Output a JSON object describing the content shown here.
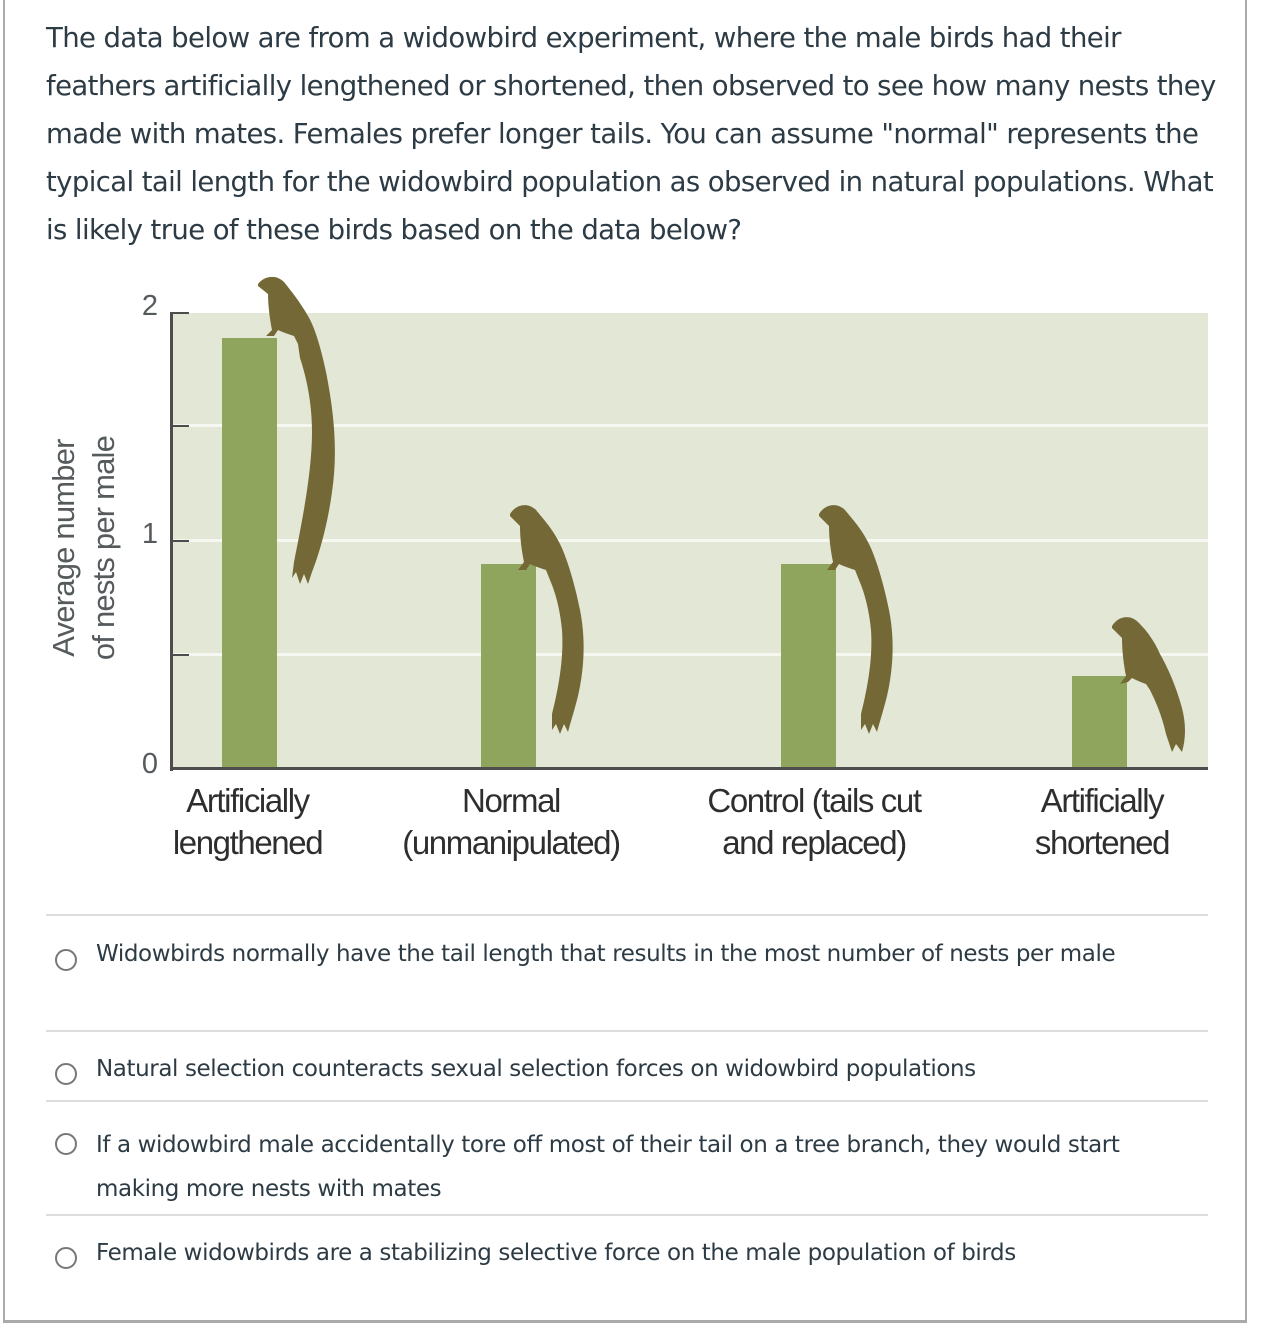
{
  "question": {
    "text": "The data below are from a widowbird experiment, where the male birds had their feathers artificially lengthened or shortened, then observed to see how many nests they made with mates. Females prefer longer tails. You can assume \"normal\" represents the typical tail length for the widowbird population as observed in natural populations. What is likely true of these birds based on the data below?"
  },
  "chart_data": {
    "type": "bar",
    "title": "",
    "xlabel": "",
    "ylabel": "Average number of nests per male",
    "ylim": [
      0,
      2
    ],
    "yticks": [
      0,
      0.5,
      1,
      1.5,
      2
    ],
    "ytick_labels": [
      "0",
      "",
      "1",
      "",
      "2"
    ],
    "grid": true,
    "legend": "none",
    "categories": [
      "Artificially lengthened",
      "Normal (unmanipulated)",
      "Control (tails cut and replaced)",
      "Artificially shortened"
    ],
    "values": [
      1.89,
      0.9,
      0.9,
      0.41
    ],
    "annotations": [
      "bird silhouette with very long tail",
      "bird silhouette with normal tail",
      "bird silhouette with normal tail",
      "bird silhouette with short tail"
    ]
  },
  "chart": {
    "ylabel_line1": "Average number",
    "ylabel_line2": "of nests per male",
    "ytick_labels": {
      "zero": "0",
      "one": "1",
      "two": "2"
    },
    "xlabels": [
      "Artificially\nlengthened",
      "Normal\n(unmanipulated)",
      "Control (tails cut\nand replaced)",
      "Artificially\nshortened"
    ],
    "colors": {
      "bar": "#8fa45c",
      "plot_bg": "#e3e7d6",
      "bird": "#746936",
      "axis": "#4d4d4d"
    }
  },
  "choices": [
    {
      "label": "Widowbirds normally have the tail length that results in the most number of nests per male",
      "selected": false
    },
    {
      "label": "Natural selection counteracts sexual selection forces on widowbird populations",
      "selected": false
    },
    {
      "label": "If a widowbird male accidentally tore off most of their tail on a tree branch, they would start making more nests with mates",
      "selected": false
    },
    {
      "label": "Female widowbirds are a stabilizing selective force on the male population of birds",
      "selected": false
    }
  ]
}
